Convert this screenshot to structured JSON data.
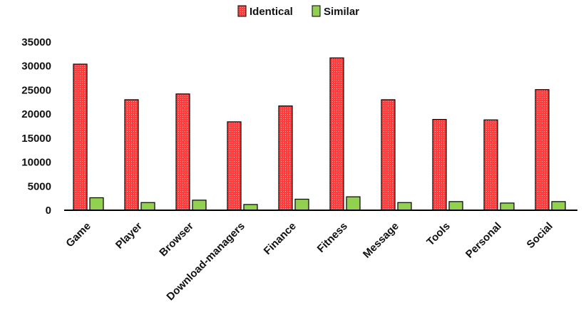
{
  "chart_data": {
    "type": "bar",
    "categories": [
      "Game",
      "Player",
      "Browser",
      "Download-managers",
      "Finance",
      "Fitness",
      "Message",
      "Tools",
      "Personal",
      "Social"
    ],
    "series": [
      {
        "name": "Identical",
        "values": [
          30400,
          23000,
          24200,
          18400,
          21700,
          31700,
          23000,
          18900,
          18800,
          25100
        ],
        "color": "#ff3b3b"
      },
      {
        "name": "Similar",
        "values": [
          2600,
          1600,
          2100,
          1200,
          2300,
          2800,
          1600,
          1800,
          1500,
          1800
        ],
        "color": "#92d050"
      }
    ],
    "y_ticks": [
      "0",
      "5000",
      "10000",
      "15000",
      "20000",
      "25000",
      "30000",
      "35000"
    ],
    "ylim": [
      0,
      35000
    ],
    "grid": false,
    "legend_position": "top-center"
  }
}
